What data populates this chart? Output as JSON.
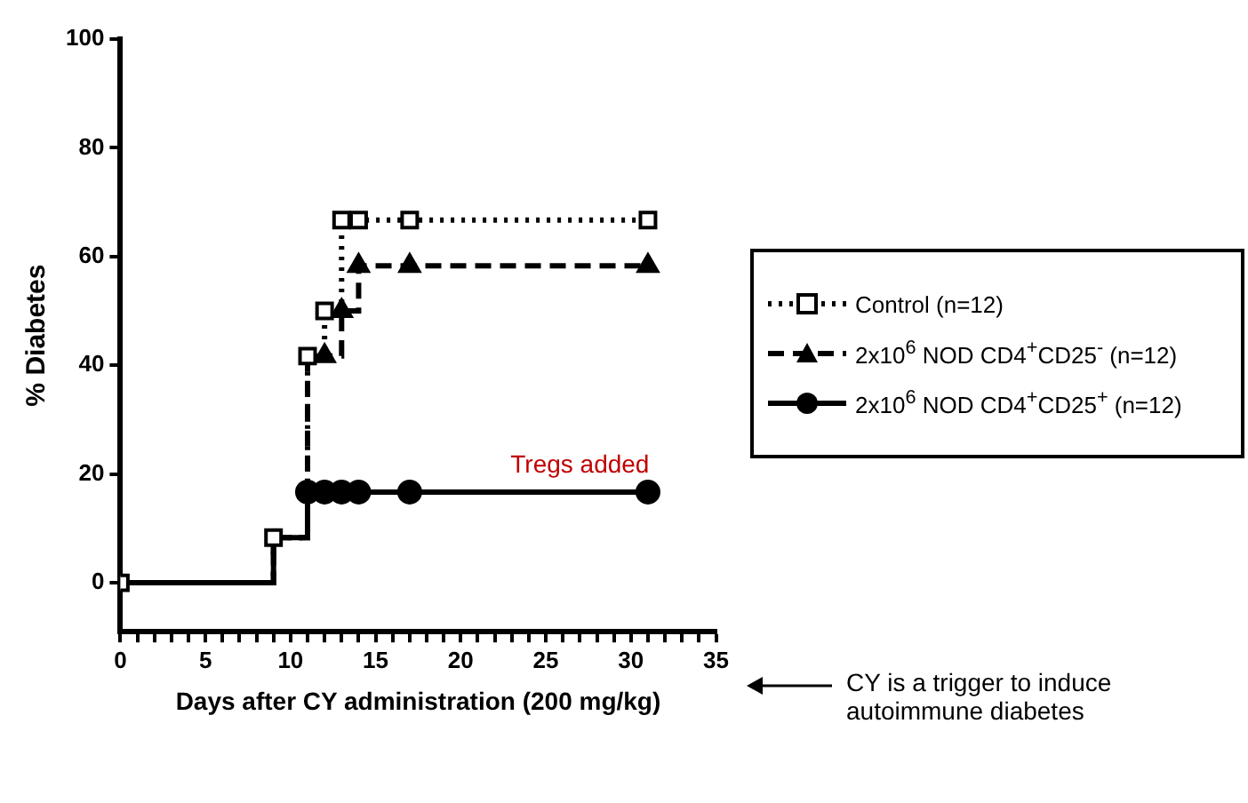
{
  "chart_data": {
    "type": "step",
    "xlabel": "Days after CY administration (200 mg/kg)",
    "ylabel": "% Diabetes",
    "xlim": [
      0,
      35
    ],
    "ylim": [
      -9,
      100
    ],
    "xticks": [
      0,
      {
        "value": 1,
        "label": null
      },
      {
        "value": 2,
        "label": null
      },
      {
        "value": 3,
        "label": null
      },
      {
        "value": 4,
        "label": null
      },
      5,
      {
        "value": 6,
        "label": null
      },
      {
        "value": 7,
        "label": null
      },
      {
        "value": 8,
        "label": null
      },
      {
        "value": 9,
        "label": null
      },
      10,
      {
        "value": 11,
        "label": null
      },
      {
        "value": 12,
        "label": null
      },
      {
        "value": 13,
        "label": null
      },
      {
        "value": 14,
        "label": null
      },
      15,
      {
        "value": 16,
        "label": null
      },
      {
        "value": 17,
        "label": null
      },
      {
        "value": 18,
        "label": null
      },
      {
        "value": 19,
        "label": null
      },
      20,
      {
        "value": 21,
        "label": null
      },
      {
        "value": 22,
        "label": null
      },
      {
        "value": 23,
        "label": null
      },
      {
        "value": 24,
        "label": null
      },
      25,
      {
        "value": 26,
        "label": null
      },
      {
        "value": 27,
        "label": null
      },
      {
        "value": 28,
        "label": null
      },
      {
        "value": 29,
        "label": null
      },
      30,
      {
        "value": 31,
        "label": null
      },
      {
        "value": 32,
        "label": null
      },
      {
        "value": 33,
        "label": null
      },
      {
        "value": 34,
        "label": null
      },
      35
    ],
    "yticks": [
      0,
      20,
      40,
      60,
      80,
      100
    ],
    "grid": false,
    "legend": "right",
    "x": [
      0,
      9,
      11,
      12,
      13,
      14,
      17,
      31
    ],
    "series": [
      {
        "name": "Control (n=12)",
        "color": "#000000",
        "marker": "square",
        "line_style": "dotted",
        "values": [
          0,
          8.3,
          41.7,
          50,
          66.7,
          66.7,
          66.7,
          66.7
        ]
      },
      {
        "name": "2x10$^{6}$ NOD CD4$^{+}$CD25$^{-}$ (n=12)",
        "color": "#000000",
        "marker": "triangle",
        "line_style": "dashed",
        "values": [
          0,
          8.3,
          41.7,
          41.7,
          50,
          58.3,
          58.3,
          58.3
        ]
      },
      {
        "name": "2x10$^{6}$ NOD CD4$^{+}$CD25$^{+}$ (n=12)",
        "color": "#000000",
        "marker": "circle",
        "line_style": "solid",
        "values": [
          0,
          8.3,
          16.7,
          16.7,
          16.7,
          16.7,
          16.7,
          16.7
        ]
      }
    ],
    "annotations": [
      {
        "text": "Tregs added",
        "x": 27,
        "y": 16.7
      },
      "CY is a trigger to induce autoimmune diabetes"
    ]
  }
}
